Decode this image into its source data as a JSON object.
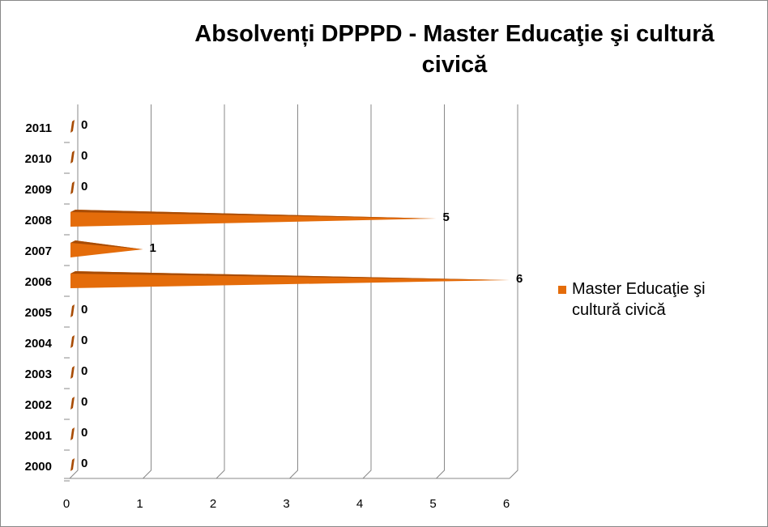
{
  "chart_data": {
    "type": "bar",
    "title": "Absolvenți DPPPD - Master Educaţie şi cultură civică",
    "categories": [
      "2000",
      "2001",
      "2002",
      "2003",
      "2004",
      "2005",
      "2006",
      "2007",
      "2008",
      "2009",
      "2010",
      "2011"
    ],
    "series": [
      {
        "name": "Master Educaţie şi cultură civică",
        "color": "#e46c0a",
        "values": [
          0,
          0,
          0,
          0,
          0,
          0,
          6,
          1,
          5,
          0,
          0,
          0
        ]
      }
    ],
    "xlim": [
      0,
      6
    ],
    "xticks": [
      0,
      1,
      2,
      3,
      4,
      5,
      6
    ],
    "grid": true,
    "legend": "right"
  }
}
